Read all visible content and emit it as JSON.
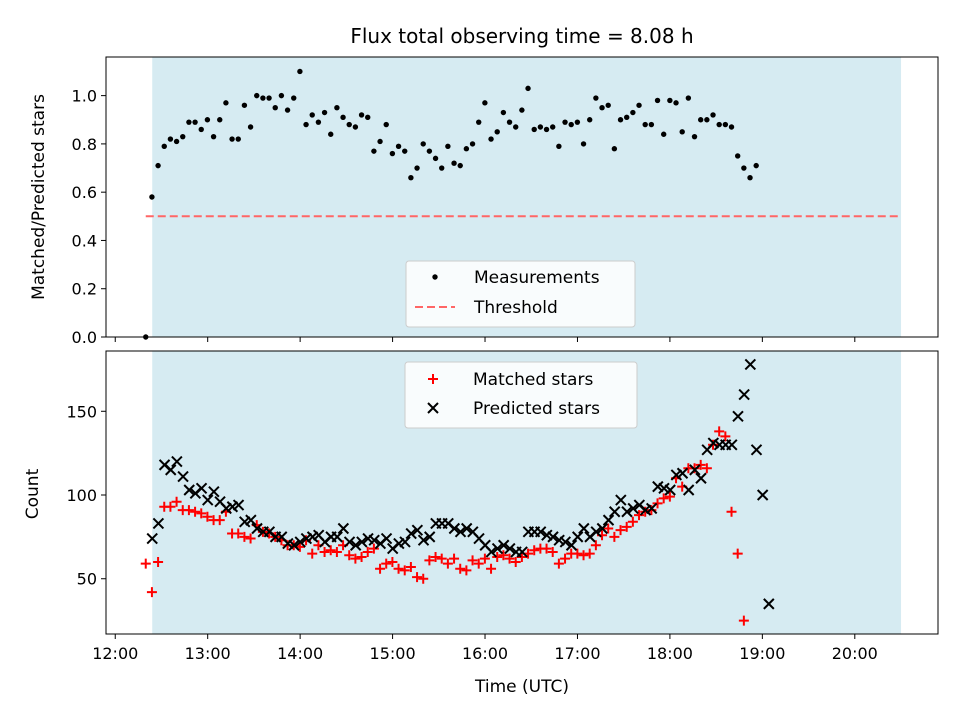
{
  "title": "Flux total observing time = 8.08 h",
  "colors": {
    "shade": "#add8e6",
    "threshold": "#ff6666",
    "matched": "#ff0000",
    "predicted": "#000000",
    "measure": "#000000"
  },
  "chart_data": [
    {
      "type": "scatter",
      "ylabel": "Matched/Predicted stars",
      "xlim_hours": [
        11.9,
        20.9
      ],
      "ylim": [
        0,
        1.16
      ],
      "shaded_span_hours": [
        12.4,
        20.5
      ],
      "yticks": [
        0.0,
        0.2,
        0.4,
        0.6,
        0.8,
        1.0
      ],
      "ytick_labels": [
        "0.0",
        "0.2",
        "0.4",
        "0.6",
        "0.8",
        "1.0"
      ],
      "threshold": {
        "y": 0.5,
        "x_range_hours": [
          12.33,
          20.5
        ]
      },
      "legend": {
        "placement": "lower-center",
        "entries": [
          "Measurements",
          "Threshold"
        ]
      },
      "series": [
        {
          "name": "Measurements",
          "x_start_hour": 12.33,
          "x_step_hours": 0.0667,
          "values": [
            0.0,
            0.58,
            0.71,
            0.79,
            0.82,
            0.81,
            0.83,
            0.89,
            0.89,
            0.86,
            0.9,
            0.83,
            0.9,
            0.97,
            0.82,
            0.82,
            0.96,
            0.87,
            1.0,
            0.99,
            0.99,
            0.95,
            1.0,
            0.94,
            0.99,
            1.1,
            0.88,
            0.92,
            0.89,
            0.93,
            0.84,
            0.95,
            0.91,
            0.88,
            0.87,
            0.92,
            0.91,
            0.77,
            0.81,
            0.88,
            0.76,
            0.79,
            0.77,
            0.66,
            0.7,
            0.8,
            0.77,
            0.74,
            0.7,
            0.79,
            0.72,
            0.71,
            0.78,
            0.8,
            0.89,
            0.97,
            0.82,
            0.85,
            0.93,
            0.89,
            0.87,
            0.94,
            1.03,
            0.86,
            0.87,
            0.86,
            0.87,
            0.79,
            0.89,
            0.88,
            0.89,
            0.8,
            0.9,
            0.99,
            0.95,
            0.96,
            0.78,
            0.9,
            0.91,
            0.93,
            0.96,
            0.88,
            0.88,
            0.98,
            0.84,
            0.98,
            0.97,
            0.85,
            0.99,
            0.83,
            0.9,
            0.9,
            0.92,
            0.88,
            0.88,
            0.87,
            0.75,
            0.7,
            0.66,
            0.71
          ]
        }
      ]
    },
    {
      "type": "scatter",
      "ylabel": "Count",
      "xlabel": "Time (UTC)",
      "xlim_hours": [
        11.9,
        20.9
      ],
      "ylim": [
        17,
        186
      ],
      "shaded_span_hours": [
        12.4,
        20.5
      ],
      "yticks": [
        50,
        100,
        150
      ],
      "ytick_labels": [
        "50",
        "100",
        "150"
      ],
      "xticks_hours": [
        12,
        13,
        14,
        15,
        16,
        17,
        18,
        19,
        20
      ],
      "xtick_labels": [
        "12:00",
        "13:00",
        "14:00",
        "15:00",
        "16:00",
        "17:00",
        "18:00",
        "19:00",
        "20:00"
      ],
      "legend": {
        "placement": "upper-center",
        "entries": [
          "Matched stars",
          "Predicted stars"
        ]
      },
      "series": [
        {
          "name": "Matched stars",
          "x_start_hour": 12.33,
          "x_step_hours": 0.0667,
          "values": [
            59,
            42,
            60,
            93,
            93,
            96,
            91,
            91,
            90,
            89,
            87,
            85,
            85,
            90,
            77,
            77,
            75,
            74,
            82,
            78,
            77,
            75,
            73,
            70,
            70,
            69,
            73,
            65,
            70,
            66,
            67,
            66,
            70,
            64,
            62,
            63,
            66,
            68,
            56,
            59,
            60,
            56,
            55,
            57,
            51,
            50,
            61,
            63,
            62,
            59,
            62,
            56,
            55,
            61,
            59,
            62,
            56,
            63,
            64,
            62,
            60,
            63,
            65,
            67,
            68,
            68,
            66,
            59,
            62,
            65,
            65,
            64,
            65,
            70,
            76,
            80,
            75,
            79,
            81,
            84,
            88,
            90,
            91,
            95,
            98,
            99,
            110,
            105,
            116,
            116,
            118,
            116,
            130,
            138,
            135,
            90,
            65,
            25
          ]
        },
        {
          "name": "Predicted stars",
          "x_start_hour": 12.4,
          "x_step_hours": 0.0667,
          "values": [
            74,
            83,
            118,
            115,
            120,
            111,
            103,
            101,
            104,
            97,
            102,
            96,
            92,
            93,
            94,
            84,
            85,
            80,
            78,
            78,
            75,
            75,
            71,
            70,
            72,
            74,
            75,
            76,
            72,
            75,
            75,
            80,
            72,
            70,
            72,
            74,
            73,
            71,
            74,
            68,
            71,
            72,
            77,
            79,
            73,
            75,
            83,
            83,
            83,
            80,
            78,
            80,
            78,
            74,
            70,
            66,
            68,
            70,
            68,
            66,
            66,
            78,
            78,
            78,
            76,
            75,
            73,
            72,
            70,
            75,
            80,
            75,
            78,
            80,
            85,
            90,
            97,
            90,
            92,
            94,
            91,
            92,
            105,
            104,
            103,
            112,
            113,
            103,
            115,
            110,
            127,
            131,
            130,
            130,
            130,
            147,
            160,
            178,
            127,
            100,
            35
          ]
        }
      ]
    }
  ]
}
